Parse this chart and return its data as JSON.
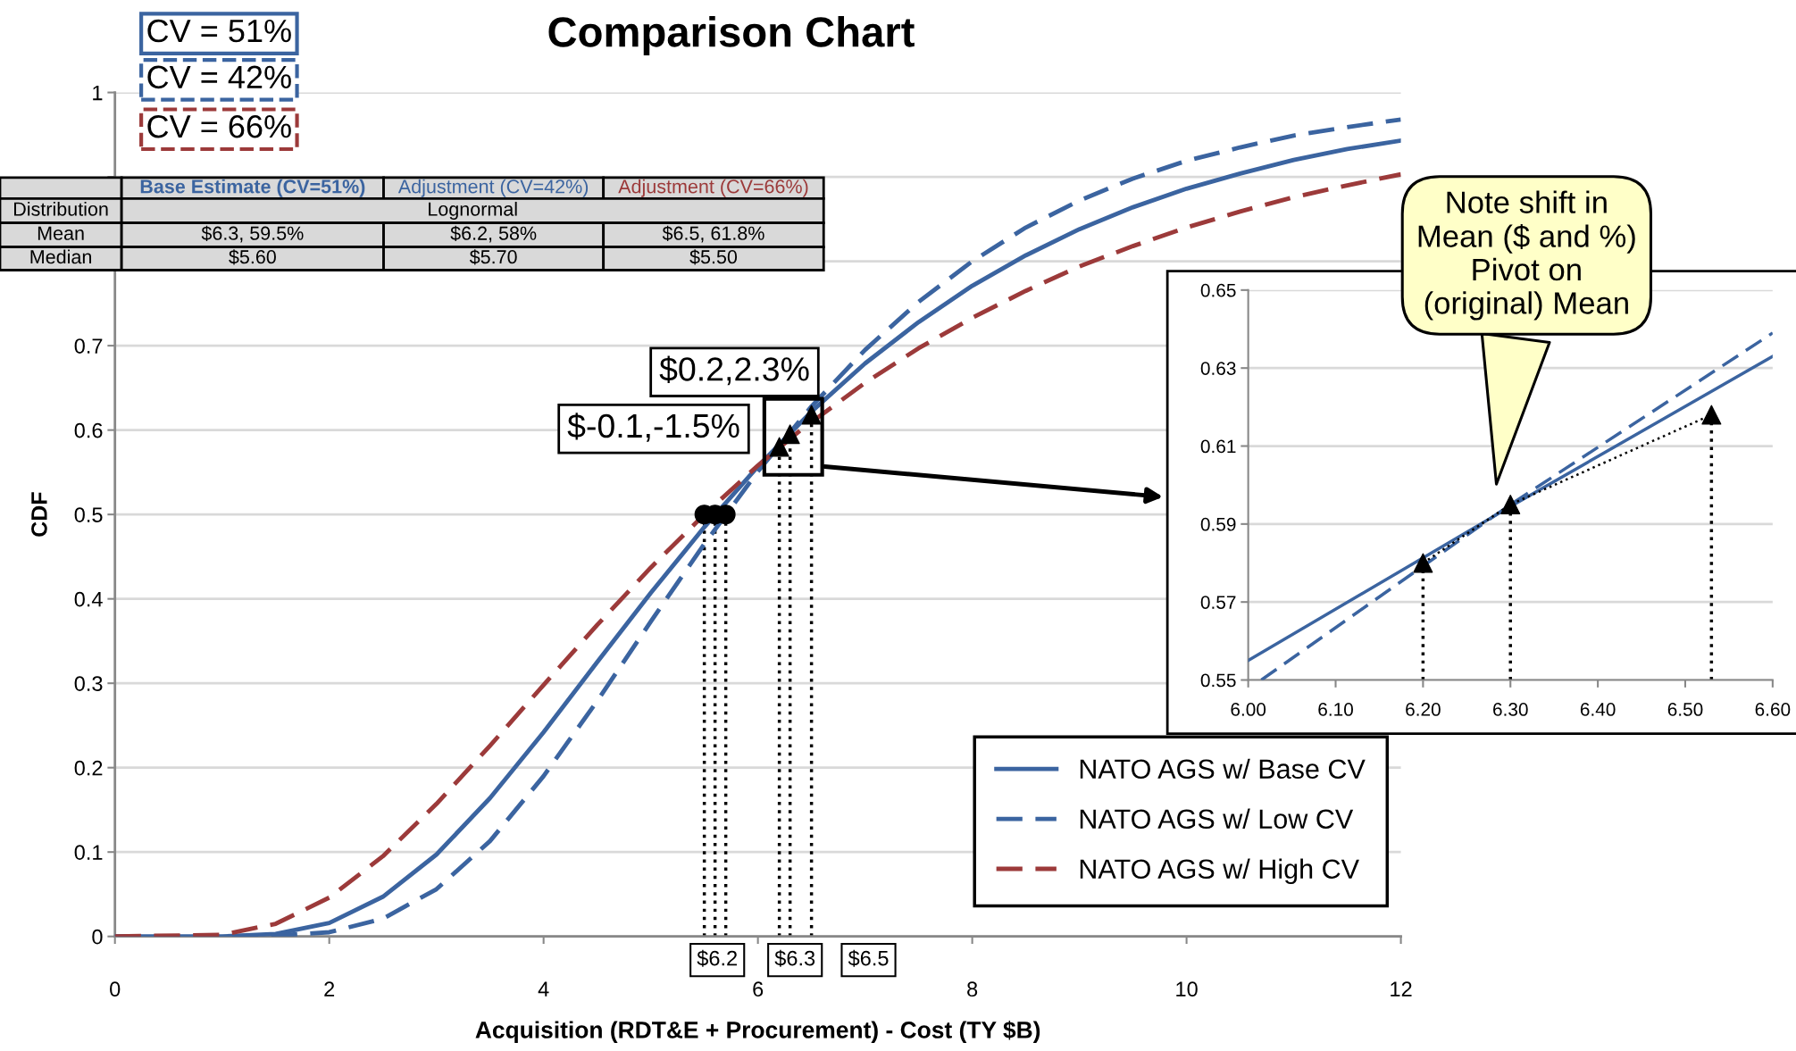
{
  "chart_data": [
    {
      "type": "line",
      "title": "Comparison Chart",
      "xlabel": "Acquisition (RDT&E + Procurement) - Cost (TY $B)",
      "ylabel": "CDF",
      "xlim": [
        0,
        12
      ],
      "xticks": [
        0,
        2,
        4,
        6,
        8,
        10,
        12
      ],
      "ylim": [
        0,
        1
      ],
      "yticks": [
        0,
        0.1,
        0.2,
        0.3,
        0.4,
        0.5,
        0.6,
        0.7,
        {
          "value": 0.8,
          "label": null
        },
        {
          "value": 0.9,
          "label": null
        },
        1
      ],
      "grid": "y",
      "legend": "bottom right",
      "series": [
        {
          "name": "NATO AGS w/ Base CV",
          "color": "#3b64a0",
          "line_style": "solid",
          "x": [
            0,
            1,
            1.5,
            2,
            2.5,
            3,
            3.5,
            4,
            4.5,
            5,
            5.5,
            6,
            6.5,
            7,
            7.5,
            8,
            8.5,
            9,
            9.5,
            10,
            10.5,
            11,
            11.5,
            12
          ],
          "values": [
            0,
            0,
            0.003,
            0.016,
            0.047,
            0.097,
            0.164,
            0.242,
            0.325,
            0.407,
            0.485,
            0.557,
            0.622,
            0.679,
            0.728,
            0.771,
            0.807,
            0.838,
            0.864,
            0.886,
            0.904,
            0.92,
            0.933,
            0.943
          ]
        },
        {
          "name": "NATO AGS w/ Low CV",
          "color": "#3b64a0",
          "line_style": "dashed",
          "x": [
            0,
            1,
            1.5,
            2,
            2.5,
            3,
            3.5,
            4,
            4.5,
            5,
            5.5,
            6,
            6.5,
            7,
            7.5,
            8,
            8.5,
            9,
            9.5,
            10,
            10.5,
            11,
            11.5,
            12
          ],
          "values": [
            0,
            0,
            0.001,
            0.005,
            0.021,
            0.056,
            0.113,
            0.19,
            0.279,
            0.373,
            0.465,
            0.551,
            0.628,
            0.695,
            0.752,
            0.8,
            0.84,
            0.872,
            0.898,
            0.919,
            0.935,
            0.949,
            0.959,
            0.968
          ]
        },
        {
          "name": "NATO AGS w/ High CV",
          "color": "#9c3a3a",
          "line_style": "dashed",
          "x": [
            0,
            1,
            1.5,
            2,
            2.5,
            3,
            3.5,
            4,
            4.5,
            5,
            5.5,
            6,
            6.4,
            7,
            7.5,
            8,
            8.5,
            9,
            9.5,
            10,
            10.5,
            11,
            11.5,
            12
          ],
          "values": [
            0,
            0.002,
            0.015,
            0.046,
            0.095,
            0.157,
            0.226,
            0.298,
            0.369,
            0.437,
            0.5,
            0.558,
            0.6,
            0.656,
            0.697,
            0.733,
            0.765,
            0.794,
            0.818,
            0.84,
            0.859,
            0.876,
            0.89,
            0.903
          ]
        },
        {
          "type": "scatter",
          "color": "#000000",
          "marker": "circle",
          "x": [
            5.5,
            5.6,
            5.7
          ],
          "values": [
            0.5,
            0.5,
            0.5
          ],
          "errors": [
            [
              0,
              0.5
            ],
            [
              0,
              0.5
            ],
            [
              0,
              0.5
            ]
          ]
        },
        {
          "type": "scatter",
          "color": "#000000",
          "marker": "triangle",
          "x": [
            6.2,
            6.3,
            6.5
          ],
          "values": [
            0.58,
            0.595,
            0.618
          ],
          "errors": [
            [
              0,
              0.58
            ],
            [
              0,
              0.595
            ],
            [
              0,
              0.618
            ]
          ]
        }
      ],
      "annotations": [
        "CV = 51%",
        "CV = 42%",
        "CV = 66%",
        "$0.2,2.3%",
        "$-0.1,-1.5%",
        {
          "text": "$6.2",
          "x": 6.2,
          "y": 0
        },
        {
          "text": "$6.3",
          "x": 6.3,
          "y": 0
        },
        {
          "text": "$6.5",
          "x": 6.5,
          "y": 0
        },
        "Base Estimate (CV=51%)",
        "Adjustment (CV=42%)",
        "Adjustment (CV=66%)",
        "Distribution",
        "Lognormal",
        "Mean",
        "$6.3, 59.5%",
        "$6.2, 58%",
        "$6.5, 61.8%",
        "Median",
        "$5.60",
        "$5.70",
        "$5.50"
      ]
    },
    {
      "type": "line",
      "xlim": [
        6.0,
        6.6
      ],
      "xticks": [
        {
          "value": 6.0,
          "label": "6.00"
        },
        {
          "value": 6.1,
          "label": "6.10"
        },
        {
          "value": 6.2,
          "label": "6.20"
        },
        {
          "value": 6.3,
          "label": "6.30"
        },
        {
          "value": 6.4,
          "label": "6.40"
        },
        {
          "value": 6.5,
          "label": "6.50"
        },
        {
          "value": 6.6,
          "label": "6.60"
        }
      ],
      "ylim": [
        0.55,
        0.65
      ],
      "yticks": [
        0.55,
        0.57,
        0.59,
        0.61,
        0.63,
        0.65
      ],
      "grid": "y",
      "series": [
        {
          "color": "#3b64a0",
          "line_style": "solid",
          "x": [
            6.0,
            6.3,
            6.6
          ],
          "values": [
            0.555,
            0.5945,
            0.633
          ]
        },
        {
          "color": "#3b64a0",
          "line_style": "dashed",
          "x": [
            6.015,
            6.3,
            6.6
          ],
          "values": [
            0.55,
            0.595,
            0.639
          ]
        },
        {
          "color": "#000000",
          "line_style": "dotted",
          "x": [
            6.2,
            6.3,
            6.53
          ],
          "values": [
            0.58,
            0.595,
            0.618
          ]
        },
        {
          "type": "scatter",
          "color": "#000000",
          "marker": "triangle",
          "x": [
            6.2,
            6.3,
            6.53
          ],
          "values": [
            0.58,
            0.595,
            0.618
          ],
          "errors": [
            [
              0.55,
              0.58
            ],
            [
              0.55,
              0.595
            ],
            [
              0.55,
              0.618
            ]
          ]
        }
      ],
      "annotations": [
        "Note shift in\nMean ($ and %)\nPivot on\n(original) Mean"
      ]
    }
  ]
}
